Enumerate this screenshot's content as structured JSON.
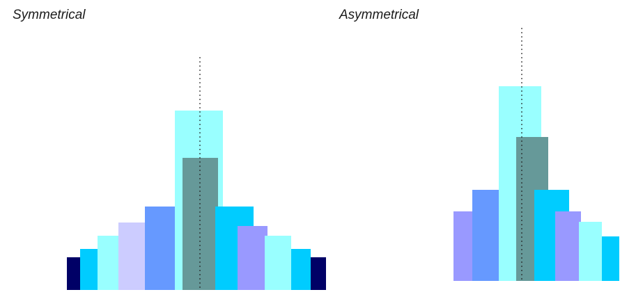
{
  "panels": {
    "symmetrical": {
      "title": "Symmetrical",
      "bars": [
        {
          "name": "bar-1",
          "color": "#000066"
        },
        {
          "name": "bar-2",
          "color": "#00CCFF"
        },
        {
          "name": "bar-3",
          "color": "#99FFFF"
        },
        {
          "name": "bar-4",
          "color": "#CCCCFF"
        },
        {
          "name": "bar-5",
          "color": "#6699FF"
        },
        {
          "name": "bar-6-back",
          "color": "#99FFFF"
        },
        {
          "name": "bar-6-front",
          "color": "#669999"
        },
        {
          "name": "bar-7",
          "color": "#00CCFF"
        },
        {
          "name": "bar-8",
          "color": "#9999FF"
        },
        {
          "name": "bar-9",
          "color": "#99FFFF"
        },
        {
          "name": "bar-10",
          "color": "#00CCFF"
        },
        {
          "name": "bar-11",
          "color": "#000066"
        }
      ]
    },
    "asymmetrical": {
      "title": "Asymmetrical",
      "bars": [
        {
          "name": "bar-1",
          "color": "#9999FF"
        },
        {
          "name": "bar-2",
          "color": "#6699FF"
        },
        {
          "name": "bar-3-back",
          "color": "#99FFFF"
        },
        {
          "name": "bar-3-front",
          "color": "#669999"
        },
        {
          "name": "bar-4",
          "color": "#00CCFF"
        },
        {
          "name": "bar-5",
          "color": "#9999FF"
        },
        {
          "name": "bar-6",
          "color": "#99FFFF"
        },
        {
          "name": "bar-7",
          "color": "#00CCFF"
        }
      ]
    }
  }
}
